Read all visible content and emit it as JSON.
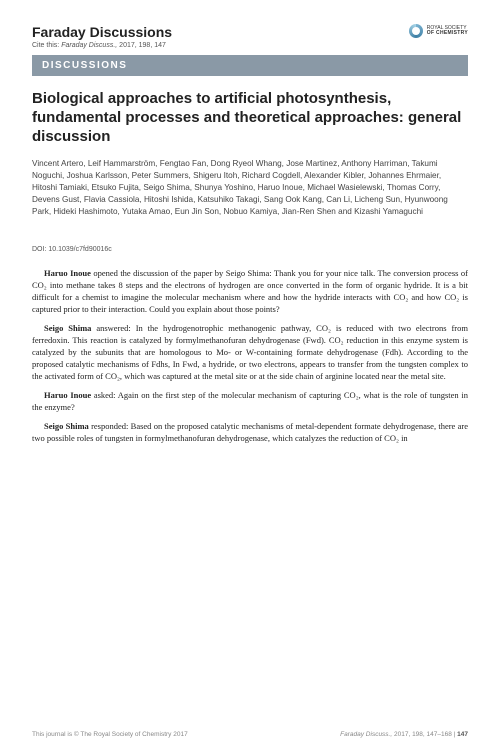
{
  "header": {
    "journal_title": "Faraday Discussions",
    "cite_prefix": "Cite this:",
    "cite_journal": "Faraday Discuss.,",
    "cite_rest": "2017, 198, 147",
    "logo_line1": "ROYAL SOCIETY",
    "logo_line2": "OF CHEMISTRY"
  },
  "banner": "DISCUSSIONS",
  "title": "Biological approaches to artificial photosynthesis, fundamental processes and theoretical approaches: general discussion",
  "authors": "Vincent Artero, Leif Hammarström, Fengtao Fan, Dong Ryeol Whang, Jose Martinez, Anthony Harriman, Takumi Noguchi, Joshua Karlsson, Peter Summers, Shigeru Itoh, Richard Cogdell, Alexander Kibler, Johannes Ehrmaier, Hitoshi Tamiaki, Etsuko Fujita, Seigo Shima, Shunya Yoshino, Haruo Inoue, Michael Wasielewski, Thomas Corry, Devens Gust, Flavia Cassiola, Hitoshi Ishida, Katsuhiko Takagi, Sang Ook Kang, Can Li, Licheng Sun, Hyunwoong Park, Hideki Hashimoto, Yutaka Amao, Eun Jin Son, Nobuo Kamiya, Jian-Ren Shen and Kizashi Yamaguchi",
  "doi": "DOI: 10.1039/c7fd90016c",
  "paragraphs": [
    {
      "speaker": "Haruo Inoue",
      "text": " opened the discussion of the paper by Seigo Shima: Thank you for your nice talk. The conversion process of CO₂ into methane takes 8 steps and the electrons of hydrogen are once converted in the form of organic hydride. It is a bit difficult for a chemist to imagine the molecular mechanism where and how the hydride interacts with CO₂ and how CO₂ is captured prior to their interaction. Could you explain about those points?"
    },
    {
      "speaker": "Seigo Shima",
      "text": " answered: In the hydrogenotrophic methanogenic pathway, CO₂ is reduced with two electrons from ferredoxin. This reaction is catalyzed by formylmethanofuran dehydrogenase (Fwd). CO₂ reduction in this enzyme system is catalyzed by the subunits that are homologous to Mo- or W-containing formate dehydrogenase (Fdh). According to the proposed catalytic mechanisms of Fdhs, In Fwd, a hydride, or two electrons, appears to transfer from the tungsten complex to the activated form of CO₂, which was captured at the metal site or at the side chain of arginine located near the metal site."
    },
    {
      "speaker": "Haruo Inoue",
      "text": " asked: Again on the first step of the molecular mechanism of capturing CO₂, what is the role of tungsten in the enzyme?"
    },
    {
      "speaker": "Seigo Shima",
      "text": " responded: Based on the proposed catalytic mechanisms of metal-dependent formate dehydrogenase, there are two possible roles of tungsten in formylmethanofuran dehydrogenase, which catalyzes the reduction of CO₂ in"
    }
  ],
  "footer": {
    "left": "This journal is © The Royal Society of Chemistry 2017",
    "right_journal": "Faraday Discuss.,",
    "right_ref": "2017, 198, 147–168 |",
    "page_num": "147"
  }
}
